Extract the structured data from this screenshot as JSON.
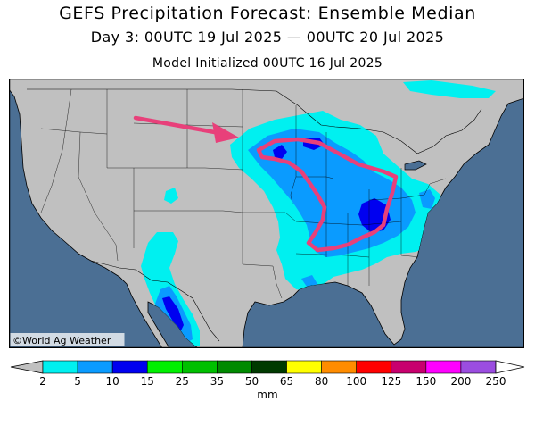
{
  "title": "GEFS Precipitation Forecast: Ensemble Median",
  "subtitle": "Day 3: 00UTC 19 Jul 2025 — 00UTC 20 Jul 2025",
  "init_line": "Model Initialized 00UTC 16 Jul 2025",
  "credit": "©World Ag Weather",
  "colors": {
    "ocean": "#4b6f94",
    "land": "#c0c0c0",
    "highlight": "#e8407a"
  },
  "colorbar": {
    "unit": "mm",
    "ticks": [
      "2",
      "5",
      "10",
      "15",
      "25",
      "35",
      "50",
      "65",
      "80",
      "100",
      "125",
      "150",
      "200",
      "250"
    ],
    "bins": [
      {
        "range": "2-5",
        "color": "#00f0f0"
      },
      {
        "range": "5-10",
        "color": "#0a9bff"
      },
      {
        "range": "10-15",
        "color": "#0000f0"
      },
      {
        "range": "15-25",
        "color": "#00f000"
      },
      {
        "range": "25-35",
        "color": "#00c000"
      },
      {
        "range": "35-50",
        "color": "#008a00"
      },
      {
        "range": "50-65",
        "color": "#003a00"
      },
      {
        "range": "65-80",
        "color": "#ffff00"
      },
      {
        "range": "80-100",
        "color": "#ff8c00"
      },
      {
        "range": "100-125",
        "color": "#ff0000"
      },
      {
        "range": "125-150",
        "color": "#c8006e"
      },
      {
        "range": "150-200",
        "color": "#ff00ff"
      },
      {
        "range": "200-250",
        "color": "#9b4de0"
      }
    ],
    "under_color": "#c0c0c0",
    "over_color": "#ffffff"
  }
}
